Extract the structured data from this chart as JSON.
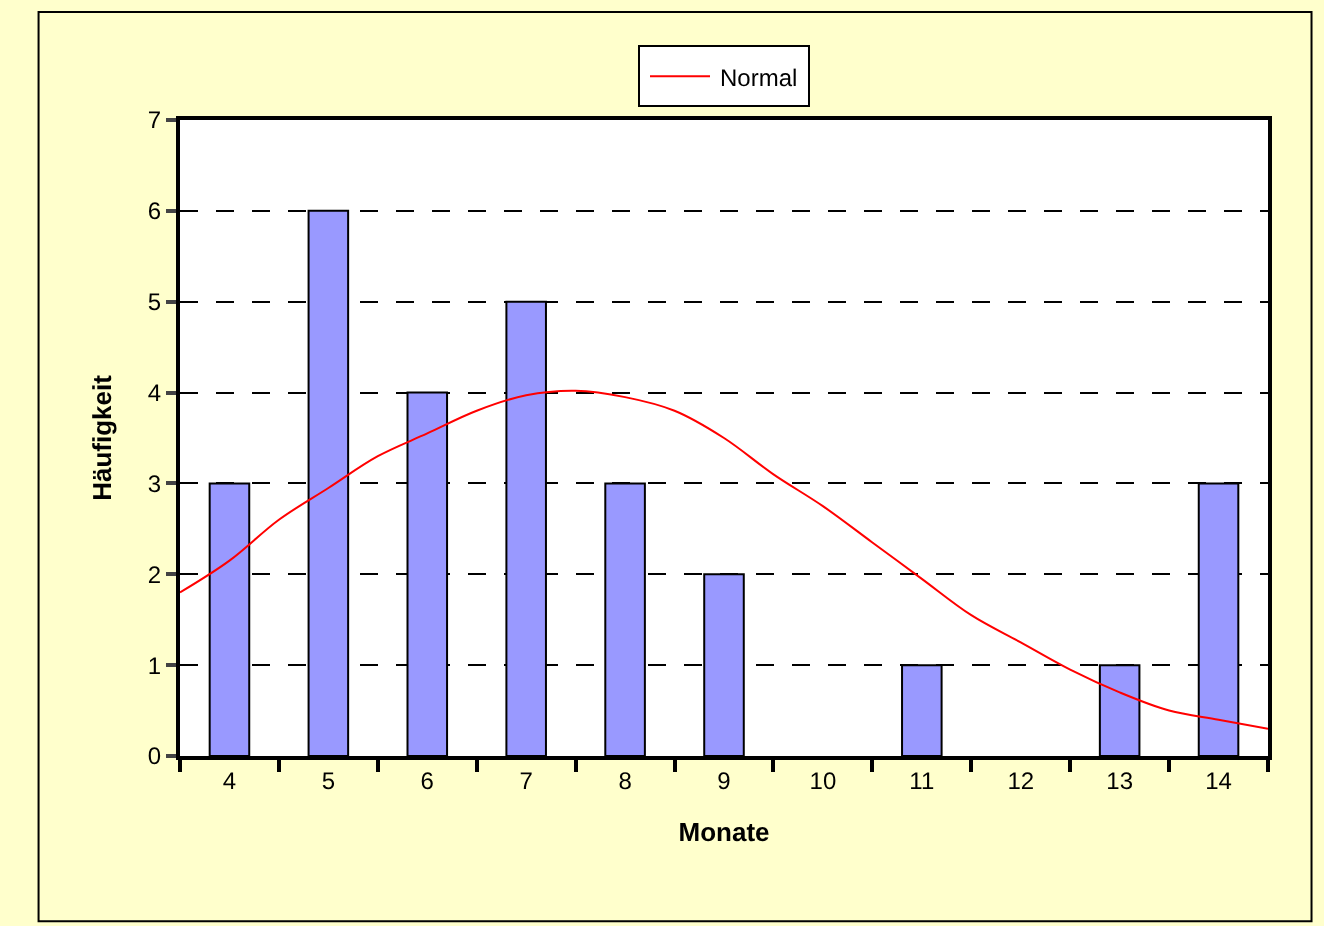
{
  "chart_data": {
    "type": "bar",
    "xlabel": "Monate",
    "ylabel": "Häufigkeit",
    "x": [
      4,
      5,
      6,
      7,
      8,
      9,
      10,
      11,
      12,
      13,
      14
    ],
    "series": [
      {
        "color": "#9999ff",
        "values": [
          3,
          6,
          4,
          5,
          3,
          2,
          0,
          1,
          0,
          1,
          3
        ]
      },
      {
        "type": "line",
        "name": "Normal",
        "color": "#ff0000",
        "x": [
          3.5,
          4,
          4.5,
          5,
          5.5,
          6,
          6.5,
          7,
          7.5,
          8,
          8.5,
          9,
          9.5,
          10,
          10.5,
          11,
          11.5,
          12,
          12.5,
          13,
          13.5,
          14,
          14.5
        ],
        "values": [
          1.8,
          2.15,
          2.6,
          2.95,
          3.3,
          3.55,
          3.8,
          3.97,
          4.02,
          3.95,
          3.8,
          3.5,
          3.1,
          2.75,
          2.35,
          1.95,
          1.55,
          1.25,
          0.95,
          0.7,
          0.5,
          0.4,
          0.3
        ]
      }
    ],
    "xlim": [
      3.5,
      14.5
    ],
    "xticks": [
      4,
      5,
      6,
      7,
      8,
      9,
      10,
      11,
      12,
      13,
      14
    ],
    "ylim": [
      0,
      7
    ],
    "yticks": [
      0,
      1,
      2,
      3,
      4,
      5,
      6,
      7
    ],
    "grid": "y",
    "legend": "top",
    "marker": "none",
    "line_style": "solid"
  }
}
